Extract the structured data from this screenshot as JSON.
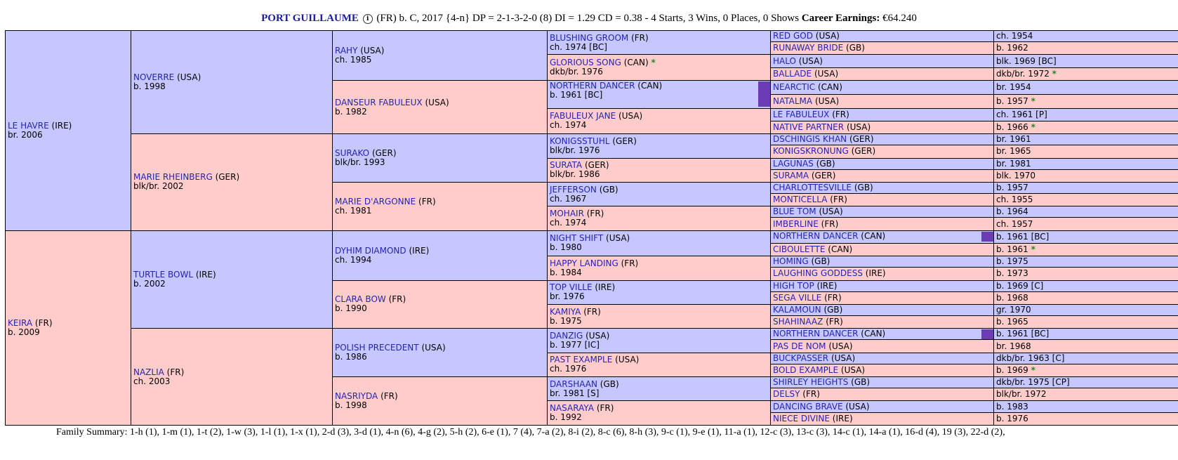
{
  "header": {
    "name": "PORT GUILLAUME",
    "info_icon": "i",
    "details": "(FR) b. C, 2017 {4-n} DP = 2-1-3-2-0 (8) DI = 1.29   CD = 0.38 - 4 Starts, 3 Wins, 0 Places, 0 Shows",
    "earnings_label": "Career Earnings:",
    "earnings_value": "€64.240"
  },
  "colors": {
    "male_bg": "#c7c7ff",
    "female_bg": "#ffcccc",
    "link": "#2424b0",
    "dup_marker": "#6a3db5",
    "star": "#1e8c1e"
  },
  "sire": {
    "name": "LE HAVRE",
    "ctry": "(IRE)",
    "yr": "br. 2006"
  },
  "dam": {
    "name": "KEIRA",
    "ctry": "(FR)",
    "yr": "b. 2009"
  },
  "g2": [
    {
      "name": "NOVERRE",
      "ctry": "(USA)",
      "yr": "b. 1998"
    },
    {
      "name": "MARIE RHEINBERG",
      "ctry": "(GER)",
      "yr": "blk/br. 2002"
    },
    {
      "name": "TURTLE BOWL",
      "ctry": "(IRE)",
      "yr": "b. 2002"
    },
    {
      "name": "NAZLIA",
      "ctry": "(FR)",
      "yr": "ch. 2003"
    }
  ],
  "g3": [
    {
      "name": "RAHY",
      "ctry": "(USA)",
      "yr": "ch. 1985"
    },
    {
      "name": "DANSEUR FABULEUX",
      "ctry": "(USA)",
      "yr": "b. 1982"
    },
    {
      "name": "SURAKO",
      "ctry": "(GER)",
      "yr": "blk/br. 1993"
    },
    {
      "name": "MARIE D'ARGONNE",
      "ctry": "(FR)",
      "yr": "ch. 1981"
    },
    {
      "name": "DYHIM DIAMOND",
      "ctry": "(IRE)",
      "yr": "ch. 1994"
    },
    {
      "name": "CLARA BOW",
      "ctry": "(FR)",
      "yr": "b. 1990"
    },
    {
      "name": "POLISH PRECEDENT",
      "ctry": "(USA)",
      "yr": "b. 1986"
    },
    {
      "name": "NASRIYDA",
      "ctry": "(FR)",
      "yr": "b. 1998"
    }
  ],
  "g4": [
    {
      "name": "BLUSHING GROOM",
      "ctry": "(FR)",
      "yr": "ch. 1974 [BC]"
    },
    {
      "name": "GLORIOUS SONG",
      "ctry": "(CAN)",
      "star": "*",
      "yr": "dkb/br. 1976"
    },
    {
      "name": "NORTHERN DANCER",
      "ctry": "(CAN)",
      "yr": "b. 1961 [BC]"
    },
    {
      "name": "FABULEUX JANE",
      "ctry": "(USA)",
      "yr": "ch. 1974"
    },
    {
      "name": "KONIGSSTUHL",
      "ctry": "(GER)",
      "yr": "blk/br. 1976"
    },
    {
      "name": "SURATA",
      "ctry": "(GER)",
      "yr": "blk/br. 1986"
    },
    {
      "name": "JEFFERSON",
      "ctry": "(GB)",
      "yr": "ch. 1967"
    },
    {
      "name": "MOHAIR",
      "ctry": "(FR)",
      "yr": "ch. 1974"
    },
    {
      "name": "NIGHT SHIFT",
      "ctry": "(USA)",
      "yr": "b. 1980"
    },
    {
      "name": "HAPPY LANDING",
      "ctry": "(FR)",
      "yr": "b. 1984"
    },
    {
      "name": "TOP VILLE",
      "ctry": "(IRE)",
      "yr": "br. 1976"
    },
    {
      "name": "KAMIYA",
      "ctry": "(FR)",
      "yr": "b. 1975"
    },
    {
      "name": "DANZIG",
      "ctry": "(USA)",
      "yr": "b. 1977 [IC]"
    },
    {
      "name": "PAST EXAMPLE",
      "ctry": "(USA)",
      "yr": "ch. 1976"
    },
    {
      "name": "DARSHAAN",
      "ctry": "(GB)",
      "yr": "br. 1981 [S]"
    },
    {
      "name": "NASARAYA",
      "ctry": "(FR)",
      "yr": "b. 1992"
    }
  ],
  "g5": [
    {
      "name": "RED GOD",
      "ctry": "(USA)",
      "yr": "ch. 1954"
    },
    {
      "name": "RUNAWAY BRIDE",
      "ctry": "(GB)",
      "yr": "b. 1962"
    },
    {
      "name": "HALO",
      "ctry": "(USA)",
      "yr": "blk. 1969 [BC]"
    },
    {
      "name": "BALLADE",
      "ctry": "(USA)",
      "yr": "dkb/br. 1972",
      "star": "*"
    },
    {
      "name": "NEARCTIC",
      "ctry": "(CAN)",
      "yr": "br. 1954"
    },
    {
      "name": "NATALMA",
      "ctry": "(USA)",
      "yr": "b. 1957",
      "star": "*"
    },
    {
      "name": "LE FABULEUX",
      "ctry": "(FR)",
      "yr": "ch. 1961 [P]"
    },
    {
      "name": "NATIVE PARTNER",
      "ctry": "(USA)",
      "yr": "b. 1966",
      "star": "*"
    },
    {
      "name": "DSCHINGIS KHAN",
      "ctry": "(GER)",
      "yr": "br. 1961"
    },
    {
      "name": "KONIGSKRONUNG",
      "ctry": "(GER)",
      "yr": "br. 1965"
    },
    {
      "name": "LAGUNAS",
      "ctry": "(GB)",
      "yr": "br. 1981"
    },
    {
      "name": "SURAMA",
      "ctry": "(GER)",
      "yr": "blk. 1970"
    },
    {
      "name": "CHARLOTTESVILLE",
      "ctry": "(GB)",
      "yr": "b. 1957"
    },
    {
      "name": "MONTICELLA",
      "ctry": "(FR)",
      "yr": "ch. 1955"
    },
    {
      "name": "BLUE TOM",
      "ctry": "(USA)",
      "yr": "b. 1964"
    },
    {
      "name": "IMBERLINE",
      "ctry": "(FR)",
      "yr": "ch. 1957"
    },
    {
      "name": "NORTHERN DANCER",
      "ctry": "(CAN)",
      "yr": "b. 1961 [BC]"
    },
    {
      "name": "CIBOULETTE",
      "ctry": "(CAN)",
      "yr": "b. 1961",
      "star": "*"
    },
    {
      "name": "HOMING",
      "ctry": "(GB)",
      "yr": "b. 1975"
    },
    {
      "name": "LAUGHING GODDESS",
      "ctry": "(IRE)",
      "yr": "b. 1973"
    },
    {
      "name": "HIGH TOP",
      "ctry": "(IRE)",
      "yr": "b. 1969 [C]"
    },
    {
      "name": "SEGA VILLE",
      "ctry": "(FR)",
      "yr": "b. 1968"
    },
    {
      "name": "KALAMOUN",
      "ctry": "(GB)",
      "yr": "gr. 1970"
    },
    {
      "name": "SHAHINAAZ",
      "ctry": "(FR)",
      "yr": "b. 1965"
    },
    {
      "name": "NORTHERN DANCER",
      "ctry": "(CAN)",
      "yr": "b. 1961 [BC]"
    },
    {
      "name": "PAS DE NOM",
      "ctry": "(USA)",
      "yr": "br. 1968"
    },
    {
      "name": "BUCKPASSER",
      "ctry": "(USA)",
      "yr": "dkb/br. 1963 [C]"
    },
    {
      "name": "BOLD EXAMPLE",
      "ctry": "(USA)",
      "yr": "b. 1969",
      "star": "*"
    },
    {
      "name": "SHIRLEY HEIGHTS",
      "ctry": "(GB)",
      "yr": "dkb/br. 1975 [CP]"
    },
    {
      "name": "DELSY",
      "ctry": "(FR)",
      "yr": "blk/br. 1972"
    },
    {
      "name": "DANCING BRAVE",
      "ctry": "(USA)",
      "yr": "b. 1983"
    },
    {
      "name": "NIECE DIVINE",
      "ctry": "(IRE)",
      "yr": "b. 1976"
    }
  ],
  "family_summary": {
    "label": "Family Summary:",
    "text": "1-h (1), 1-m (1), 1-t (2), 1-w (3), 1-l (1), 1-x (1), 2-d (3), 3-d (1), 4-n (6), 4-g (2), 5-h (2), 6-e (1), 7 (4), 7-a (2), 8-i (2), 8-c (6), 8-h (3), 9-c (1), 9-e (1), 11-a (1), 12-c (3), 13-c (3), 14-c (1), 14-a (1), 16-d (4), 19 (3), 22-d (2),"
  }
}
